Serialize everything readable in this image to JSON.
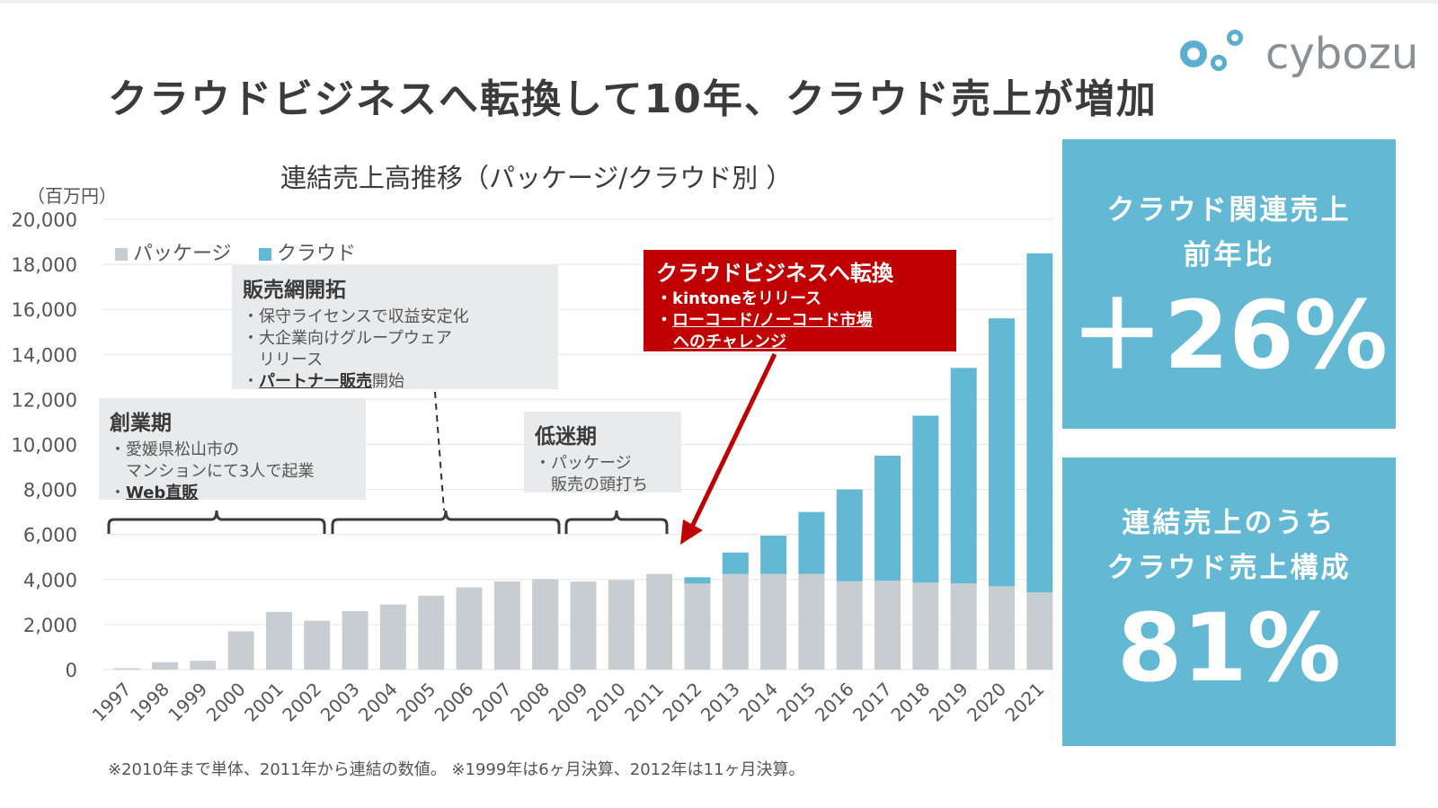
{
  "title": "クラウドビジネスへ転換して10年、クラウド売上が増加",
  "logo": {
    "text": "cybozu",
    "colors": [
      "#5aaed1",
      "#8a8f96"
    ]
  },
  "unit": "（百万円）",
  "legend": [
    {
      "label": "パッケージ",
      "color": "#c8cdd1"
    },
    {
      "label": "クラウド",
      "color": "#63b8d3"
    }
  ],
  "callouts": {
    "founding": {
      "title": "創業期",
      "lines": [
        "・愛媛県松山市の",
        "　マンションにて3人で起業"
      ],
      "highlight_prefix": "・",
      "highlight": "Web直販"
    },
    "sales": {
      "title": "販売網開拓",
      "lines": [
        "・保守ライセンスで収益安定化",
        "・大企業向けグループウェア",
        "　リリース"
      ],
      "highlight_prefix": "・",
      "highlight": "パートナー販売",
      "highlight_suffix": "開始"
    },
    "slump": {
      "title": "低迷期",
      "lines": [
        "・パッケージ",
        "　販売の頭打ち"
      ]
    },
    "cloud": {
      "title": "クラウドビジネスへ転換",
      "line1": "・kintoneをリリース",
      "line2_prefix": "・",
      "line2": "ローコード/ノーコード市場",
      "line3": "へのチャレンジ"
    }
  },
  "kpis": [
    {
      "label1": "クラウド関連売上",
      "label2": "前年比",
      "value": "＋26%"
    },
    {
      "label1": "連結売上のうち",
      "label2": "クラウド売上構成",
      "value": "81%"
    }
  ],
  "footnote": "※2010年まで単体、2011年から連結の数値。 ※1999年は6ヶ月決算、2012年は11ヶ月決算。",
  "chart_data": {
    "type": "bar",
    "stacked": true,
    "title": "連結売上高推移（パッケージ/クラウド別 ）",
    "ylabel": "（百万円）",
    "ylim": [
      0,
      20000
    ],
    "yticks": [
      "0",
      "2,000",
      "4,000",
      "6,000",
      "8,000",
      "10,000",
      "12,000",
      "14,000",
      "16,000",
      "18,000",
      "20,000"
    ],
    "categories": [
      "1997",
      "1998",
      "1999",
      "2000",
      "2001",
      "2002",
      "2003",
      "2004",
      "2005",
      "2006",
      "2007",
      "2008",
      "2009",
      "2010",
      "2011",
      "2012",
      "2013",
      "2014",
      "2015",
      "2016",
      "2017",
      "2018",
      "2019",
      "2020",
      "2021"
    ],
    "series": [
      {
        "name": "パッケージ",
        "color": "#c8cdd1",
        "values": [
          60,
          330,
          390,
          1700,
          2560,
          2170,
          2600,
          2890,
          3280,
          3650,
          3920,
          4020,
          3910,
          3980,
          4250,
          3820,
          4250,
          4250,
          4250,
          3920,
          3950,
          3860,
          3830,
          3700,
          3430
        ]
      },
      {
        "name": "クラウド",
        "color": "#63b8d3",
        "values": [
          0,
          0,
          0,
          0,
          0,
          0,
          0,
          0,
          0,
          0,
          0,
          0,
          0,
          0,
          0,
          280,
          950,
          1700,
          2750,
          4080,
          5550,
          7420,
          9570,
          11900,
          15060
        ]
      }
    ]
  }
}
